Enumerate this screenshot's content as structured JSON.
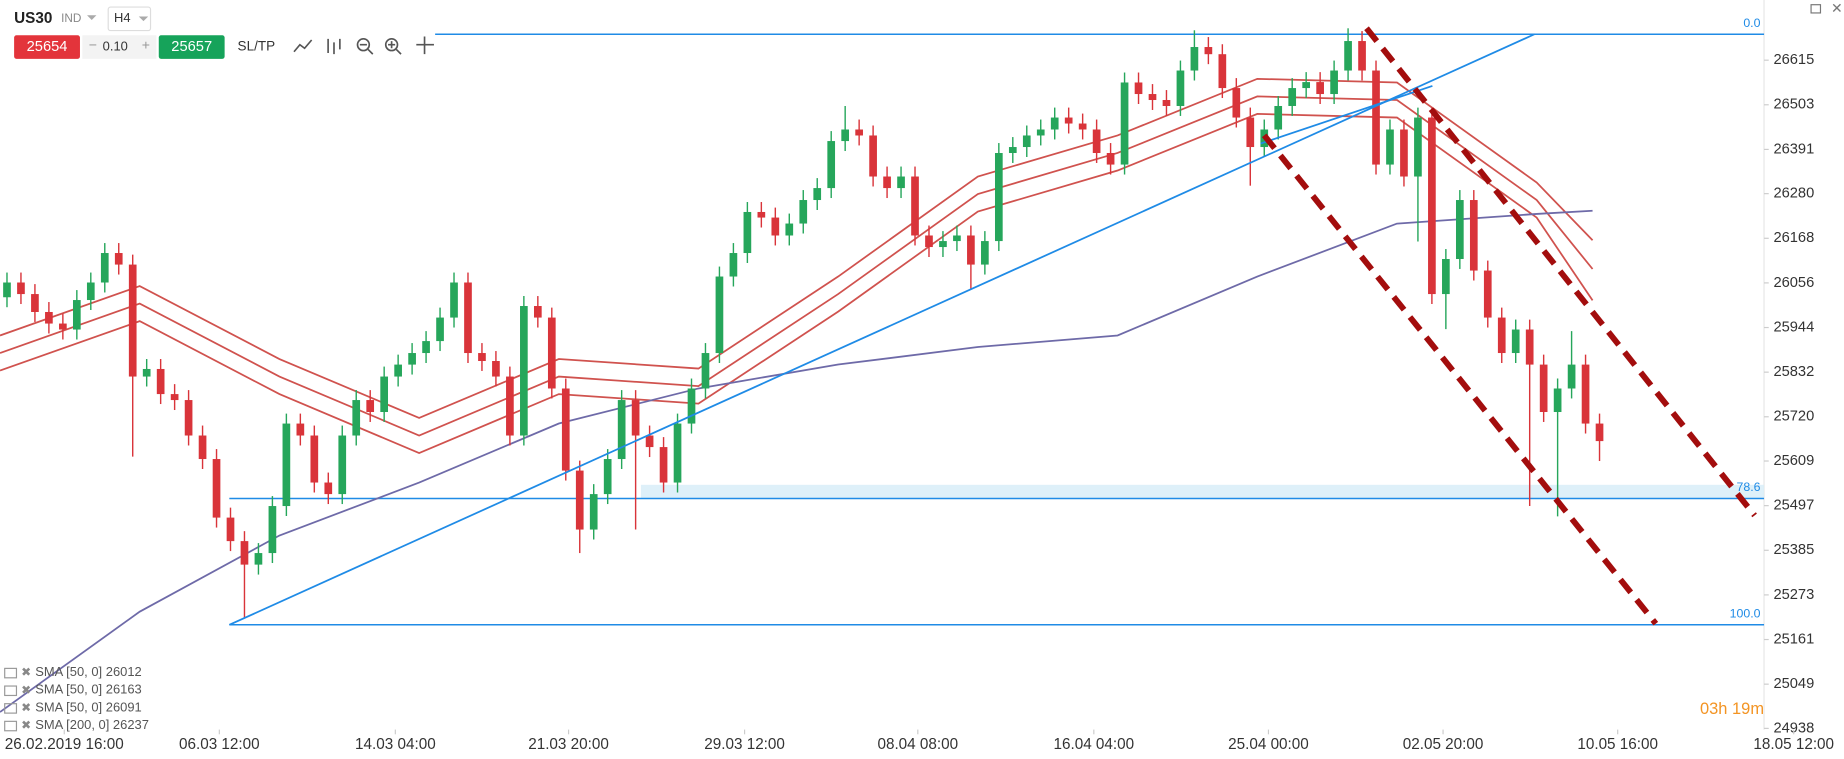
{
  "toolbar": {
    "symbol": "US30",
    "market": "IND",
    "timeframe": "H4",
    "sell": "25654",
    "spread": "0.10",
    "buy": "25657",
    "sltp": "SL/TP"
  },
  "timer": "03h 19m",
  "chart_data": {
    "type": "candlestick",
    "up_color": "#26a65b",
    "down_color": "#d9343a",
    "xlim": [
      0,
      132
    ],
    "xticks": [
      {
        "value": 4.6,
        "label": "26.02.2019 16:00"
      },
      {
        "value": 15.7,
        "label": "06.03 12:00"
      },
      {
        "value": 28.3,
        "label": "14.03 04:00"
      },
      {
        "value": 40.7,
        "label": "21.03 20:00"
      },
      {
        "value": 53.3,
        "label": "29.03 12:00"
      },
      {
        "value": 65.7,
        "label": "08.04 08:00"
      },
      {
        "value": 78.3,
        "label": "16.04 04:00"
      },
      {
        "value": 90.8,
        "label": "25.04 00:00"
      },
      {
        "value": 103.3,
        "label": "02.05 20:00"
      },
      {
        "value": 115.8,
        "label": "10.05 16:00"
      },
      {
        "value": 128.4,
        "label": "18.05 12:00"
      }
    ],
    "ylim": [
      24935,
      26766
    ],
    "yticks": [
      26615,
      26503,
      26391,
      26280,
      26168,
      26056,
      25944,
      25832,
      25720,
      25609,
      25497,
      25385,
      25273,
      25161,
      25049,
      24938
    ],
    "open": [
      26020,
      26057,
      26028,
      25983,
      25954,
      25939,
      26013,
      26057,
      26131,
      26102,
      25821,
      25840,
      25777,
      25762,
      25673,
      25614,
      25467,
      25408,
      25349,
      25378,
      25496,
      25703,
      25673,
      25555,
      25526,
      25673,
      25762,
      25732,
      25821,
      25851,
      25880,
      25910,
      25969,
      26057,
      25880,
      25860,
      25821,
      25673,
      25998,
      25969,
      25791,
      25585,
      25437,
      25526,
      25614,
      25762,
      25673,
      25644,
      25555,
      25703,
      25791,
      25880,
      26072,
      26131,
      26234,
      26220,
      26175,
      26205,
      26264,
      26294,
      26412,
      26441,
      26426,
      26323,
      26294,
      26323,
      26175,
      26146,
      26161,
      26175,
      26102,
      26161,
      26382,
      26397,
      26426,
      26441,
      26471,
      26456,
      26441,
      26382,
      26353,
      26559,
      26530,
      26515,
      26500,
      26589,
      26648,
      26630,
      26545,
      26471,
      26397,
      26441,
      26500,
      26545,
      26560,
      26530,
      26589,
      26663,
      26589,
      26353,
      26441,
      26323,
      26471,
      26028,
      26116,
      26264,
      26087,
      25969,
      25880,
      25939,
      25851,
      25732,
      25791,
      25851,
      25703
    ],
    "high": [
      26082,
      26082,
      26053,
      26008,
      25979,
      26038,
      26082,
      26156,
      26156,
      26127,
      25865,
      25865,
      25802,
      25787,
      25698,
      25639,
      25492,
      25433,
      25403,
      25521,
      25728,
      25728,
      25698,
      25580,
      25698,
      25787,
      25787,
      25846,
      25876,
      25905,
      25935,
      25994,
      26082,
      26082,
      25905,
      25885,
      25846,
      26023,
      26023,
      25994,
      25816,
      25610,
      25551,
      25639,
      25787,
      25787,
      25698,
      25669,
      25728,
      25816,
      25905,
      26097,
      26156,
      26259,
      26259,
      26245,
      26230,
      26289,
      26319,
      26437,
      26500,
      26466,
      26451,
      26348,
      26348,
      26348,
      26200,
      26186,
      26200,
      26200,
      26186,
      26407,
      26422,
      26451,
      26466,
      26496,
      26496,
      26481,
      26466,
      26407,
      26584,
      26584,
      26555,
      26540,
      26614,
      26690,
      26673,
      26655,
      26570,
      26496,
      26466,
      26525,
      26570,
      26585,
      26585,
      26614,
      26695,
      26688,
      26614,
      26466,
      26466,
      26496,
      26496,
      26141,
      26289,
      26289,
      26112,
      25994,
      25964,
      25964,
      25876,
      25816,
      25935,
      25876,
      25728
    ],
    "low": [
      25995,
      26003,
      25958,
      25929,
      25914,
      25914,
      25988,
      26032,
      26077,
      25620,
      25796,
      25752,
      25737,
      25648,
      25589,
      25442,
      25383,
      25216,
      25324,
      25353,
      25471,
      25648,
      25530,
      25501,
      25501,
      25648,
      25707,
      25707,
      25796,
      25826,
      25855,
      25885,
      25944,
      25855,
      25835,
      25796,
      25648,
      25648,
      25944,
      25766,
      25560,
      25378,
      25412,
      25501,
      25589,
      25437,
      25619,
      25530,
      25530,
      25678,
      25766,
      25855,
      26047,
      26106,
      26195,
      26150,
      26150,
      26180,
      26239,
      26269,
      26387,
      26401,
      26298,
      26269,
      26269,
      26150,
      26121,
      26121,
      26136,
      26040,
      26077,
      26136,
      26357,
      26372,
      26401,
      26416,
      26431,
      26416,
      26357,
      26328,
      26328,
      26505,
      26490,
      26475,
      26475,
      26564,
      26605,
      26520,
      26446,
      26300,
      26372,
      26416,
      26475,
      26520,
      26505,
      26505,
      26564,
      26564,
      26328,
      26328,
      26298,
      26160,
      26003,
      25940,
      26091,
      26062,
      25944,
      25855,
      25855,
      25496,
      25707,
      25470,
      25766,
      25678,
      25609
    ],
    "close": [
      26057,
      26028,
      25983,
      25954,
      25939,
      26013,
      26057,
      26131,
      26102,
      25821,
      25840,
      25777,
      25762,
      25673,
      25614,
      25467,
      25408,
      25349,
      25378,
      25496,
      25703,
      25673,
      25555,
      25526,
      25673,
      25762,
      25732,
      25821,
      25851,
      25880,
      25910,
      25969,
      26057,
      25880,
      25860,
      25821,
      25673,
      25998,
      25969,
      25791,
      25585,
      25437,
      25526,
      25614,
      25762,
      25673,
      25644,
      25555,
      25703,
      25791,
      25880,
      26072,
      26131,
      26234,
      26220,
      26175,
      26205,
      26264,
      26294,
      26412,
      26441,
      26426,
      26323,
      26294,
      26323,
      26175,
      26146,
      26161,
      26175,
      26102,
      26161,
      26382,
      26397,
      26426,
      26441,
      26471,
      26456,
      26441,
      26382,
      26353,
      26559,
      26530,
      26515,
      26500,
      26589,
      26648,
      26630,
      26545,
      26471,
      26397,
      26441,
      26500,
      26545,
      26560,
      26530,
      26589,
      26663,
      26589,
      26353,
      26441,
      26323,
      26471,
      26028,
      26116,
      26264,
      26087,
      25969,
      25880,
      25939,
      25851,
      25732,
      25791,
      25851,
      25703,
      25659
    ],
    "indicators": [
      {
        "name": "SMA [50, 0]",
        "value": 26012,
        "color": "#d0524e",
        "x": [
          0,
          10,
          20,
          30,
          40,
          50,
          60,
          70,
          80,
          90,
          100,
          110,
          114
        ],
        "values": [
          25836,
          25960,
          25777,
          25629,
          25777,
          25753,
          25984,
          26235,
          26338,
          26480,
          26471,
          26220,
          26012
        ]
      },
      {
        "name": "SMA [50, 0]",
        "value": 26163,
        "color": "#d0524e",
        "x": [
          0,
          10,
          20,
          30,
          40,
          50,
          60,
          70,
          80,
          90,
          100,
          110,
          114
        ],
        "values": [
          25924,
          26048,
          25865,
          25717,
          25865,
          25841,
          26072,
          26323,
          26426,
          26568,
          26559,
          26308,
          26163
        ]
      },
      {
        "name": "SMA [50, 0]",
        "value": 26091,
        "color": "#d0524e",
        "x": [
          0,
          10,
          20,
          30,
          40,
          50,
          60,
          70,
          80,
          90,
          100,
          110,
          114
        ],
        "values": [
          25880,
          26004,
          25821,
          25673,
          25821,
          25797,
          26028,
          26279,
          26382,
          26524,
          26515,
          26264,
          26091
        ]
      },
      {
        "name": "SMA [200, 0]",
        "value": 26237,
        "color": "#6e6aa8",
        "x": [
          0,
          10,
          20,
          30,
          40,
          50,
          60,
          70,
          80,
          90,
          100,
          110,
          114
        ],
        "values": [
          24979,
          25231,
          25422,
          25555,
          25703,
          25791,
          25851,
          25895,
          25924,
          26072,
          26205,
          26229,
          26237
        ]
      }
    ],
    "fib_levels": [
      {
        "label": "0.0",
        "value": 26680
      },
      {
        "label": "78.6",
        "value": 25515
      },
      {
        "label": "100.0",
        "value": 25198
      }
    ]
  }
}
